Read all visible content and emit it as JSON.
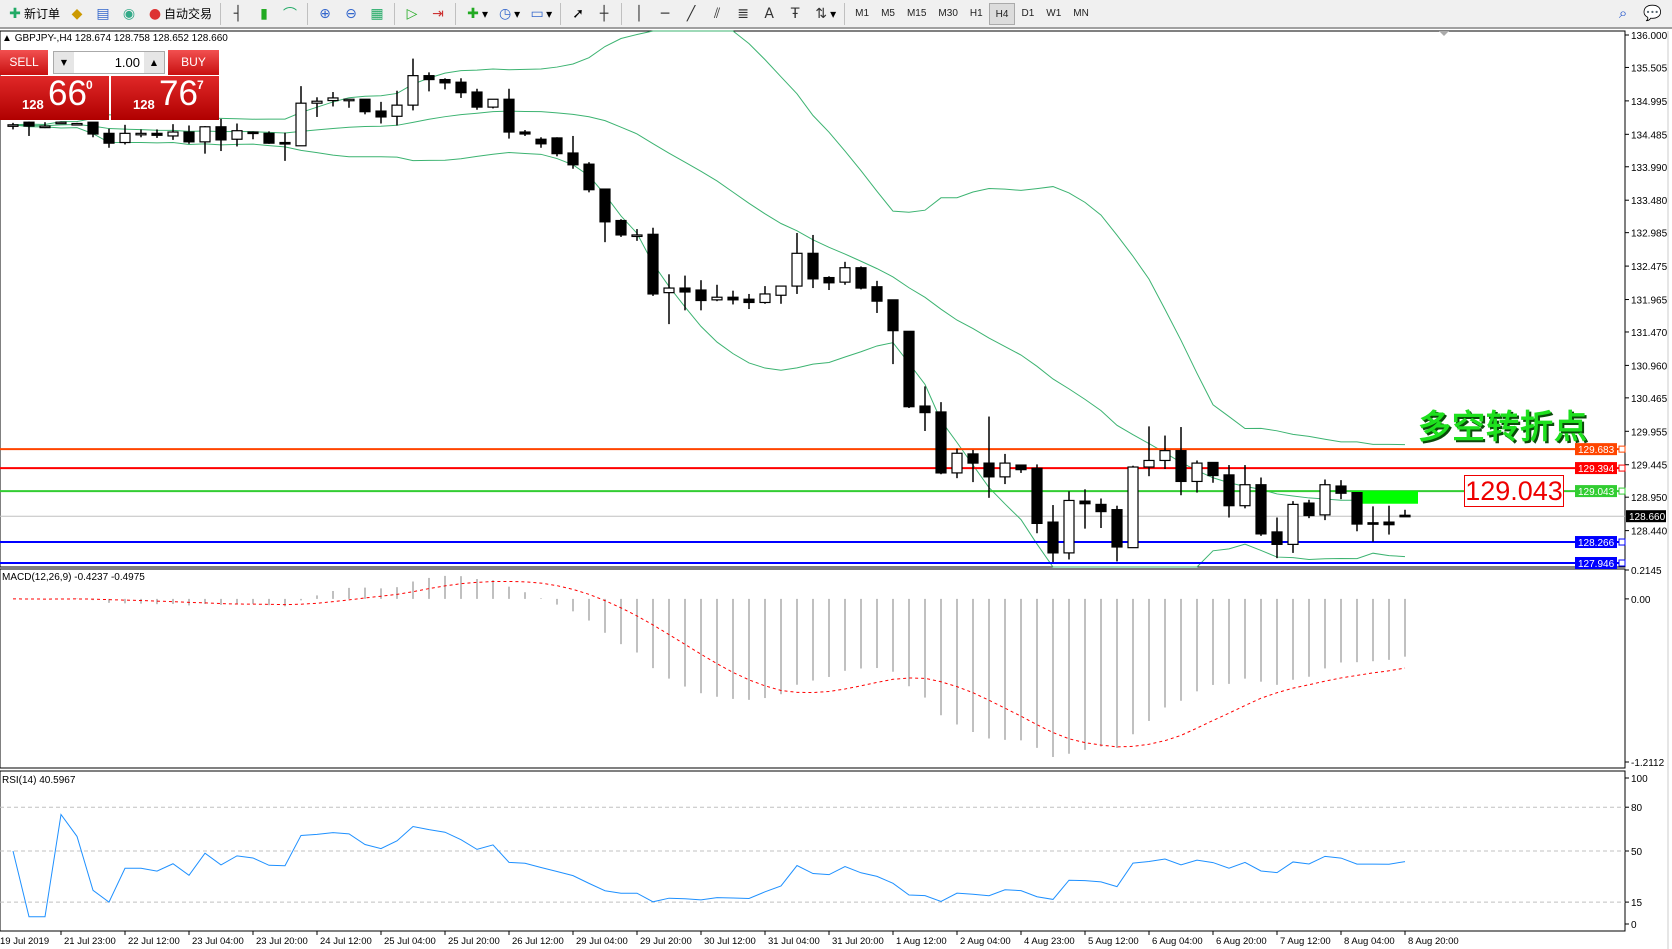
{
  "toolbar": {
    "new_order": "新订单",
    "auto_trade": "自动交易",
    "timeframes": [
      "M1",
      "M5",
      "M15",
      "M30",
      "H1",
      "H4",
      "D1",
      "W1",
      "MN"
    ],
    "active_timeframe": "H4"
  },
  "chart": {
    "symbol_line": "GBPJPY-,H4  128.674 128.758 128.652 128.660"
  },
  "trade_panel": {
    "sell": "SELL",
    "buy": "BUY",
    "lots": "1.00",
    "sell_price": {
      "prefix": "128",
      "big": "66",
      "sup": "0"
    },
    "buy_price": {
      "prefix": "128",
      "big": "76",
      "sup": "7"
    }
  },
  "annotation": {
    "text": "多空转折点",
    "price_label": "129.043",
    "zone_color": "#00ff00"
  },
  "chart_data": {
    "type": "candlestick",
    "colors": {
      "bull": "#ffffff",
      "bear": "#000000",
      "bollinger": "#3cb371",
      "macd_hist": "#c0c0c0",
      "macd_signal": "#ff0000",
      "rsi": "#1e90ff"
    },
    "ohlc": [
      [
        134.63,
        134.66,
        134.56,
        134.63
      ],
      [
        134.67,
        134.68,
        134.46,
        134.61
      ],
      [
        134.61,
        134.67,
        134.58,
        134.61
      ],
      [
        134.67,
        134.68,
        134.66,
        134.67
      ],
      [
        134.65,
        134.66,
        134.64,
        134.65
      ],
      [
        134.67,
        134.67,
        134.44,
        134.49
      ],
      [
        134.5,
        134.57,
        134.28,
        134.35
      ],
      [
        134.36,
        134.63,
        134.33,
        134.5
      ],
      [
        134.5,
        134.56,
        134.44,
        134.5
      ],
      [
        134.5,
        134.56,
        134.43,
        134.47
      ],
      [
        134.46,
        134.64,
        134.4,
        134.52
      ],
      [
        134.52,
        134.62,
        134.34,
        134.37
      ],
      [
        134.37,
        134.61,
        134.19,
        134.6
      ],
      [
        134.6,
        134.72,
        134.23,
        134.4
      ],
      [
        134.41,
        134.65,
        134.3,
        134.54
      ],
      [
        134.52,
        134.53,
        134.41,
        134.5
      ],
      [
        134.5,
        134.53,
        134.34,
        134.35
      ],
      [
        134.36,
        134.51,
        134.08,
        134.34
      ],
      [
        134.31,
        135.22,
        134.31,
        134.96
      ],
      [
        134.96,
        135.05,
        134.75,
        134.99
      ],
      [
        135.0,
        135.13,
        134.91,
        135.04
      ],
      [
        135.02,
        135.02,
        134.89,
        135.02
      ],
      [
        135.02,
        135.02,
        134.79,
        134.83
      ],
      [
        134.84,
        134.98,
        134.65,
        134.75
      ],
      [
        134.76,
        135.15,
        134.62,
        134.93
      ],
      [
        134.93,
        135.64,
        134.85,
        135.38
      ],
      [
        135.38,
        135.43,
        135.14,
        135.32
      ],
      [
        135.32,
        135.34,
        135.17,
        135.27
      ],
      [
        135.28,
        135.34,
        135.04,
        135.12
      ],
      [
        135.13,
        135.18,
        134.86,
        134.9
      ],
      [
        134.9,
        135.02,
        134.88,
        135.02
      ],
      [
        135.02,
        135.18,
        134.42,
        134.52
      ],
      [
        134.52,
        134.55,
        134.46,
        134.49
      ],
      [
        134.41,
        134.44,
        134.28,
        134.34
      ],
      [
        134.43,
        134.44,
        134.15,
        134.19
      ],
      [
        134.2,
        134.46,
        133.96,
        134.02
      ],
      [
        134.03,
        134.06,
        133.6,
        133.64
      ],
      [
        133.65,
        133.65,
        132.84,
        133.15
      ],
      [
        133.17,
        133.19,
        132.92,
        132.95
      ],
      [
        132.95,
        133.04,
        132.86,
        132.95
      ],
      [
        132.96,
        133.06,
        132.02,
        132.05
      ],
      [
        132.07,
        132.35,
        131.59,
        132.14
      ],
      [
        132.14,
        132.33,
        131.8,
        132.08
      ],
      [
        132.11,
        132.26,
        131.8,
        131.95
      ],
      [
        131.96,
        132.19,
        131.94,
        132.0
      ],
      [
        132.0,
        132.1,
        131.89,
        131.96
      ],
      [
        131.97,
        132.05,
        131.82,
        131.92
      ],
      [
        131.92,
        132.17,
        131.9,
        132.05
      ],
      [
        132.03,
        132.17,
        131.9,
        132.17
      ],
      [
        132.17,
        132.98,
        132.05,
        132.67
      ],
      [
        132.67,
        132.95,
        132.14,
        132.28
      ],
      [
        132.3,
        132.32,
        132.11,
        132.22
      ],
      [
        132.23,
        132.54,
        132.19,
        132.45
      ],
      [
        132.45,
        132.47,
        132.12,
        132.14
      ],
      [
        132.16,
        132.25,
        131.76,
        131.94
      ],
      [
        131.96,
        131.96,
        130.98,
        131.49
      ],
      [
        131.48,
        131.48,
        130.31,
        130.33
      ],
      [
        130.34,
        130.64,
        129.96,
        130.24
      ],
      [
        130.25,
        130.4,
        129.3,
        129.32
      ],
      [
        129.32,
        129.69,
        129.24,
        129.62
      ],
      [
        129.61,
        129.67,
        129.18,
        129.47
      ],
      [
        129.47,
        130.18,
        128.94,
        129.26
      ],
      [
        129.26,
        129.61,
        129.15,
        129.47
      ],
      [
        129.44,
        129.44,
        129.32,
        129.37
      ],
      [
        129.39,
        129.45,
        128.4,
        128.55
      ],
      [
        128.57,
        128.83,
        127.96,
        128.1
      ],
      [
        128.1,
        129.04,
        128.0,
        128.9
      ],
      [
        128.89,
        129.07,
        128.47,
        128.85
      ],
      [
        128.84,
        128.93,
        128.48,
        128.73
      ],
      [
        128.76,
        128.82,
        127.97,
        128.19
      ],
      [
        128.18,
        129.43,
        128.18,
        129.41
      ],
      [
        129.41,
        130.03,
        129.27,
        129.51
      ],
      [
        129.51,
        129.89,
        129.38,
        129.66
      ],
      [
        129.66,
        130.02,
        128.98,
        129.19
      ],
      [
        129.19,
        129.51,
        129.02,
        129.47
      ],
      [
        129.48,
        129.48,
        129.17,
        129.28
      ],
      [
        129.29,
        129.44,
        128.64,
        128.82
      ],
      [
        128.82,
        129.44,
        128.78,
        129.14
      ],
      [
        129.14,
        129.25,
        128.36,
        128.39
      ],
      [
        128.42,
        128.64,
        128.02,
        128.23
      ],
      [
        128.23,
        128.89,
        128.1,
        128.84
      ],
      [
        128.86,
        128.91,
        128.63,
        128.67
      ],
      [
        128.68,
        129.22,
        128.6,
        129.14
      ],
      [
        129.12,
        129.21,
        128.92,
        129.01
      ],
      [
        129.02,
        129.02,
        128.43,
        128.54
      ],
      [
        128.56,
        128.81,
        128.27,
        128.54
      ],
      [
        128.57,
        128.82,
        128.38,
        128.53
      ],
      [
        128.674,
        128.758,
        128.652,
        128.66
      ]
    ],
    "price_range": [
      127.946,
      136.0
    ],
    "price_axis_ticks": [
      "136.000",
      "135.505",
      "134.995",
      "134.485",
      "133.990",
      "133.480",
      "132.985",
      "132.475",
      "131.965",
      "131.470",
      "130.960",
      "130.465",
      "129.955",
      "129.445",
      "128.950",
      "128.440"
    ],
    "levels": [
      {
        "price": 129.683,
        "label": "129.683",
        "color": "#ff4500"
      },
      {
        "price": 129.394,
        "label": "129.394",
        "color": "#ff0000"
      },
      {
        "price": 129.043,
        "label": "129.043",
        "color": "#32cd32"
      },
      {
        "price": 128.266,
        "label": "128.266",
        "color": "#0000ff"
      },
      {
        "price": 127.946,
        "label": "127.946",
        "color": "#0000ff"
      }
    ],
    "bid": {
      "price": 128.66,
      "label": "128.660"
    },
    "zone": {
      "from_candle": 84,
      "to_candle": 88,
      "top": 129.043,
      "bottom": 128.85
    },
    "time_labels": [
      "19 Jul 2019",
      "21 Jul 23:00",
      "22 Jul 12:00",
      "23 Jul 04:00",
      "23 Jul 20:00",
      "24 Jul 12:00",
      "25 Jul 04:00",
      "25 Jul 20:00",
      "26 Jul 12:00",
      "29 Jul 04:00",
      "29 Jul 20:00",
      "30 Jul 12:00",
      "31 Jul 04:00",
      "31 Jul 20:00",
      "1 Aug 12:00",
      "2 Aug 04:00",
      "4 Aug 23:00",
      "5 Aug 12:00",
      "6 Aug 04:00",
      "6 Aug 20:00",
      "7 Aug 12:00",
      "8 Aug 04:00",
      "8 Aug 20:00"
    ],
    "bollinger": {
      "period": 20,
      "deviation": 2
    },
    "macd": {
      "label": "MACD(12,26,9) -0.4237 -0.4975",
      "fast": 12,
      "slow": 26,
      "signal": 9,
      "range": [
        -1.2112,
        0.2145
      ],
      "axis_ticks": [
        "0.2145",
        "0.00",
        "-1.2112"
      ]
    },
    "rsi": {
      "label": "RSI(14) 40.5967",
      "period": 14,
      "range": [
        0,
        100
      ],
      "axis_ticks": [
        "100",
        "80",
        "50",
        "15",
        "0"
      ],
      "levels": [
        80,
        50,
        15
      ]
    }
  }
}
